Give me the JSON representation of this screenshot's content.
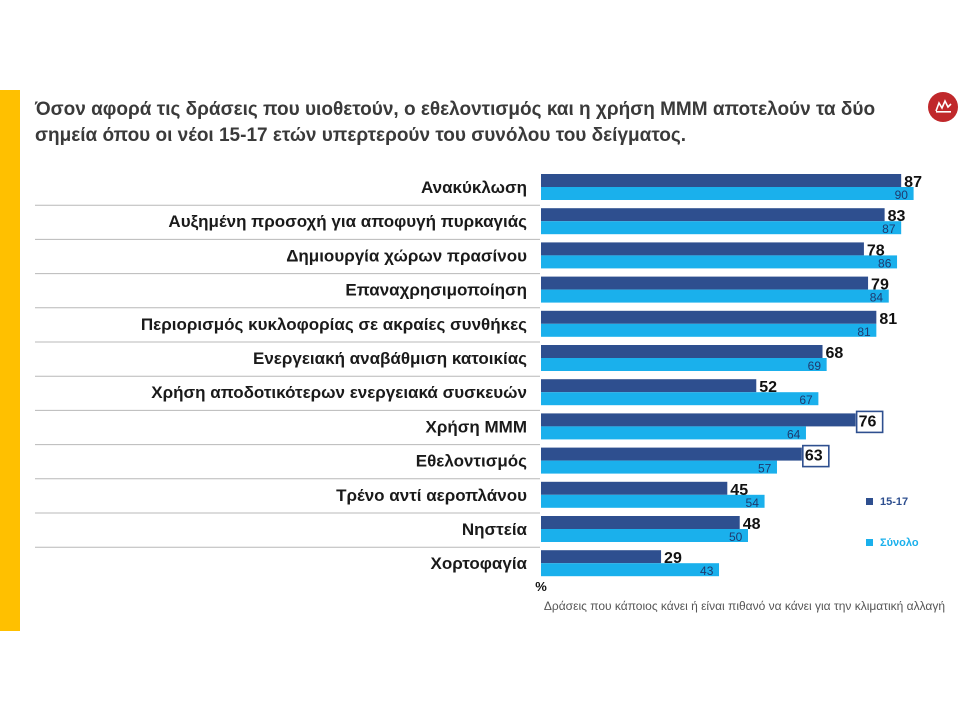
{
  "slide": {
    "title": "Όσον αφορά τις δράσεις που υιοθετούν, ο εθελοντισμός και η χρήση ΜΜΜ αποτελούν τα δύο σημεία όπου οι νέοι 15-17 ετών υπερτερούν του συνόλου του δείγματος.",
    "footnote": "Δράσεις που κάποιος κάνει ή είναι πιθανό να κάνει για την κλιματική αλλαγή",
    "accent_color": "#ffc000",
    "logo_icon": "red-circle-logo-icon"
  },
  "chart_data": {
    "type": "bar",
    "orientation": "horizontal",
    "categories": [
      "Ανακύκλωση",
      "Αυξημένη προσοχή για αποφυγή πυρκαγιάς",
      "Δημιουργία χώρων πρασίνου",
      "Επαναχρησιμοποίηση",
      "Περιορισμός κυκλοφορίας σε ακραίες συνθήκες",
      "Ενεργειακή αναβάθμιση κατοικίας",
      "Χρήση αποδοτικότερων ενεργειακά συσκευών",
      "Χρήση ΜΜΜ",
      "Εθελοντισμός",
      "Τρένο αντί αεροπλάνου",
      "Νηστεία",
      "Χορτοφαγία"
    ],
    "series": [
      {
        "name": "15-17",
        "color": "#2e4f8f",
        "values": [
          87,
          83,
          78,
          79,
          81,
          68,
          52,
          76,
          63,
          45,
          48,
          29
        ]
      },
      {
        "name": "Σύνολο",
        "color": "#1ab0ec",
        "values": [
          90,
          87,
          86,
          84,
          81,
          69,
          67,
          64,
          57,
          54,
          50,
          43
        ]
      }
    ],
    "highlighted": [
      {
        "series": 0,
        "category": "Χρήση ΜΜΜ"
      },
      {
        "series": 0,
        "category": "Εθελοντισμός"
      }
    ],
    "unit_label": "%",
    "xlim": [
      0,
      100
    ],
    "legend_position": "right"
  }
}
